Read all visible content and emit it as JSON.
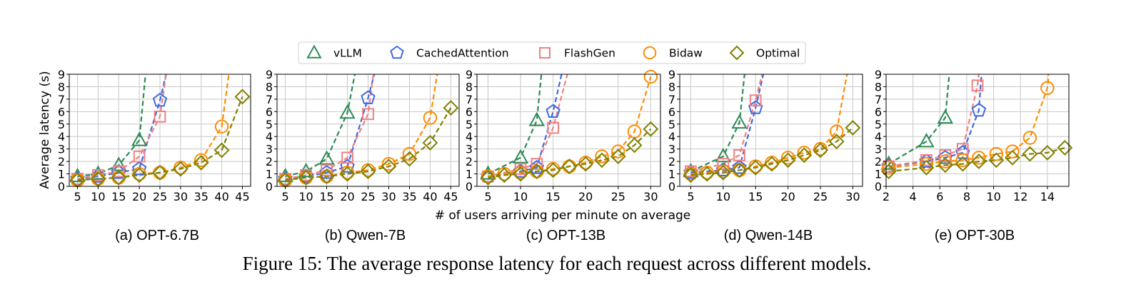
{
  "legend": [
    {
      "name": "vLLM",
      "color": "#2e8b57",
      "marker": "triangle"
    },
    {
      "name": "CachedAttention",
      "color": "#4169e1",
      "marker": "pentagon"
    },
    {
      "name": "FlashGen",
      "color": "#f08080",
      "marker": "square"
    },
    {
      "name": "Bidaw",
      "color": "#ff8c00",
      "marker": "circle"
    },
    {
      "name": "Optimal",
      "color": "#808000",
      "marker": "diamond"
    }
  ],
  "ylabel": "Average latency (s)",
  "xlabel": "# of users arriving per minute on average",
  "figure_caption": "Figure 15: The average response latency for each request across different models.",
  "chart_data": [
    {
      "type": "line",
      "caption": "(a) OPT-6.7B",
      "xlim": [
        3,
        47
      ],
      "ylim": [
        0,
        9
      ],
      "xticks": [
        5,
        10,
        15,
        20,
        25,
        30,
        35,
        40,
        45
      ],
      "yticks": [
        0,
        1,
        2,
        3,
        4,
        5,
        6,
        7,
        8,
        9
      ],
      "series": [
        {
          "name": "vLLM",
          "x": [
            5,
            10,
            15,
            20,
            21.5
          ],
          "y": [
            0.8,
            1.0,
            1.7,
            3.7,
            9
          ]
        },
        {
          "name": "CachedAttention",
          "x": [
            5,
            10,
            15,
            20,
            25,
            26.5
          ],
          "y": [
            0.6,
            0.8,
            1.1,
            1.4,
            6.9,
            9
          ]
        },
        {
          "name": "FlashGen",
          "x": [
            5,
            10,
            15,
            20,
            25,
            26.5
          ],
          "y": [
            0.6,
            0.9,
            1.2,
            2.4,
            5.6,
            9
          ]
        },
        {
          "name": "Bidaw",
          "x": [
            5,
            10,
            15,
            20,
            25,
            30,
            35,
            40,
            41.7
          ],
          "y": [
            0.5,
            0.6,
            0.7,
            1.0,
            1.1,
            1.5,
            2.1,
            4.8,
            9
          ]
        },
        {
          "name": "Optimal",
          "x": [
            5,
            10,
            15,
            20,
            25,
            30,
            35,
            40,
            45
          ],
          "y": [
            0.5,
            0.6,
            0.7,
            0.9,
            1.1,
            1.4,
            1.9,
            2.9,
            7.2
          ]
        }
      ]
    },
    {
      "type": "line",
      "caption": "(b) Qwen-7B",
      "xlim": [
        3,
        47
      ],
      "ylim": [
        0,
        9
      ],
      "xticks": [
        5,
        10,
        15,
        20,
        25,
        30,
        35,
        40,
        45
      ],
      "yticks": [
        0,
        1,
        2,
        3,
        4,
        5,
        6,
        7,
        8,
        9
      ],
      "series": [
        {
          "name": "vLLM",
          "x": [
            5,
            10,
            15,
            20,
            21.8
          ],
          "y": [
            0.8,
            1.2,
            2.2,
            5.9,
            9
          ]
        },
        {
          "name": "CachedAttention",
          "x": [
            5,
            10,
            15,
            20,
            25,
            26.5
          ],
          "y": [
            0.6,
            0.8,
            1.1,
            1.6,
            7.1,
            9
          ]
        },
        {
          "name": "FlashGen",
          "x": [
            5,
            10,
            15,
            20,
            25,
            26.3
          ],
          "y": [
            0.6,
            0.9,
            1.3,
            2.3,
            5.8,
            9
          ]
        },
        {
          "name": "Bidaw",
          "x": [
            5,
            10,
            15,
            20,
            25,
            30,
            35,
            40,
            41.7
          ],
          "y": [
            0.5,
            0.7,
            0.8,
            1.1,
            1.3,
            1.8,
            2.6,
            5.5,
            9
          ]
        },
        {
          "name": "Optimal",
          "x": [
            5,
            10,
            15,
            20,
            25,
            30,
            35,
            40,
            45
          ],
          "y": [
            0.5,
            0.7,
            0.8,
            1.0,
            1.2,
            1.6,
            2.2,
            3.5,
            6.3
          ]
        }
      ]
    },
    {
      "type": "line",
      "caption": "(c) OPT-13B",
      "xlim": [
        3.3,
        31.5
      ],
      "ylim": [
        0,
        9
      ],
      "xticks": [
        5,
        10,
        15,
        20,
        25,
        30
      ],
      "yticks": [
        0,
        1,
        2,
        3,
        4,
        5,
        6,
        7,
        8,
        9
      ],
      "series": [
        {
          "name": "vLLM",
          "x": [
            5,
            10,
            12.5,
            13.2
          ],
          "y": [
            1.0,
            2.3,
            5.3,
            9
          ]
        },
        {
          "name": "CachedAttention",
          "x": [
            5,
            10,
            12.5,
            15,
            16.3
          ],
          "y": [
            0.8,
            1.2,
            1.5,
            6.0,
            9
          ]
        },
        {
          "name": "FlashGen",
          "x": [
            5,
            10,
            12.5,
            15,
            17.2
          ],
          "y": [
            0.8,
            1.4,
            1.8,
            4.7,
            9
          ]
        },
        {
          "name": "Bidaw",
          "x": [
            5,
            7.5,
            10,
            12.5,
            15,
            17.5,
            20,
            22.5,
            25,
            27.5,
            30
          ],
          "y": [
            0.8,
            1.0,
            1.1,
            1.2,
            1.4,
            1.6,
            1.9,
            2.4,
            2.8,
            4.4,
            8.8
          ]
        },
        {
          "name": "Optimal",
          "x": [
            5,
            7.5,
            10,
            12.5,
            15,
            17.5,
            20,
            22.5,
            25,
            27.5,
            30
          ],
          "y": [
            0.7,
            0.9,
            1.0,
            1.2,
            1.3,
            1.6,
            1.8,
            2.1,
            2.4,
            3.3,
            4.6
          ]
        }
      ]
    },
    {
      "type": "line",
      "caption": "(d) Qwen-14B",
      "xlim": [
        3.3,
        31.5
      ],
      "ylim": [
        0,
        9
      ],
      "xticks": [
        5,
        10,
        15,
        20,
        25,
        30
      ],
      "yticks": [
        0,
        1,
        2,
        3,
        4,
        5,
        6,
        7,
        8,
        9
      ],
      "series": [
        {
          "name": "vLLM",
          "x": [
            5,
            10,
            12.5,
            13.3
          ],
          "y": [
            1.2,
            2.4,
            5.1,
            9
          ]
        },
        {
          "name": "CachedAttention",
          "x": [
            5,
            10,
            12.5,
            15,
            16.2
          ],
          "y": [
            1.1,
            1.3,
            1.5,
            6.3,
            9
          ]
        },
        {
          "name": "FlashGen",
          "x": [
            5,
            10,
            12.5,
            15,
            16.0
          ],
          "y": [
            1.2,
            1.8,
            2.5,
            6.9,
            9
          ]
        },
        {
          "name": "Bidaw",
          "x": [
            5,
            7.5,
            10,
            12.5,
            15,
            17.5,
            20,
            22.5,
            25,
            27.5,
            29.1
          ],
          "y": [
            1.0,
            1.1,
            1.2,
            1.3,
            1.6,
            1.9,
            2.3,
            2.7,
            3.0,
            4.4,
            9
          ]
        },
        {
          "name": "Optimal",
          "x": [
            5,
            7.5,
            10,
            12.5,
            15,
            17.5,
            20,
            22.5,
            25,
            27.5,
            30
          ],
          "y": [
            0.9,
            1.0,
            1.1,
            1.3,
            1.5,
            1.8,
            2.1,
            2.5,
            2.9,
            3.6,
            4.7
          ]
        }
      ]
    },
    {
      "type": "line",
      "caption": "(e) OPT-30B",
      "xlim": [
        2,
        15.6
      ],
      "ylim": [
        0,
        9
      ],
      "xticks": [
        2,
        4,
        6,
        8,
        10,
        12,
        14
      ],
      "yticks": [
        0,
        1,
        2,
        3,
        4,
        5,
        6,
        7,
        8,
        9
      ],
      "series": [
        {
          "name": "vLLM",
          "x": [
            2.2,
            5.0,
            6.4,
            6.7
          ],
          "y": [
            1.8,
            3.6,
            5.5,
            9
          ]
        },
        {
          "name": "CachedAttention",
          "x": [
            2.2,
            5.0,
            6.4,
            7.7,
            8.9,
            9.1
          ],
          "y": [
            1.6,
            2.0,
            2.3,
            2.7,
            6.1,
            9
          ]
        },
        {
          "name": "FlashGen",
          "x": [
            2.2,
            5.0,
            6.4,
            7.7,
            8.8,
            8.9
          ],
          "y": [
            1.6,
            2.1,
            2.5,
            3.0,
            8.1,
            9
          ]
        },
        {
          "name": "Bidaw",
          "x": [
            2.2,
            5.0,
            6.4,
            7.7,
            8.9,
            10.2,
            11.4,
            12.7,
            14.0,
            14.1
          ],
          "y": [
            1.5,
            1.8,
            2.0,
            2.1,
            2.3,
            2.6,
            2.8,
            3.9,
            7.9,
            9
          ]
        },
        {
          "name": "Optimal",
          "x": [
            2.2,
            5.0,
            6.4,
            7.7,
            8.9,
            10.2,
            11.4,
            12.7,
            14.0,
            15.3
          ],
          "y": [
            1.2,
            1.5,
            1.7,
            1.8,
            2.0,
            2.1,
            2.3,
            2.6,
            2.7,
            3.1
          ]
        }
      ]
    }
  ]
}
